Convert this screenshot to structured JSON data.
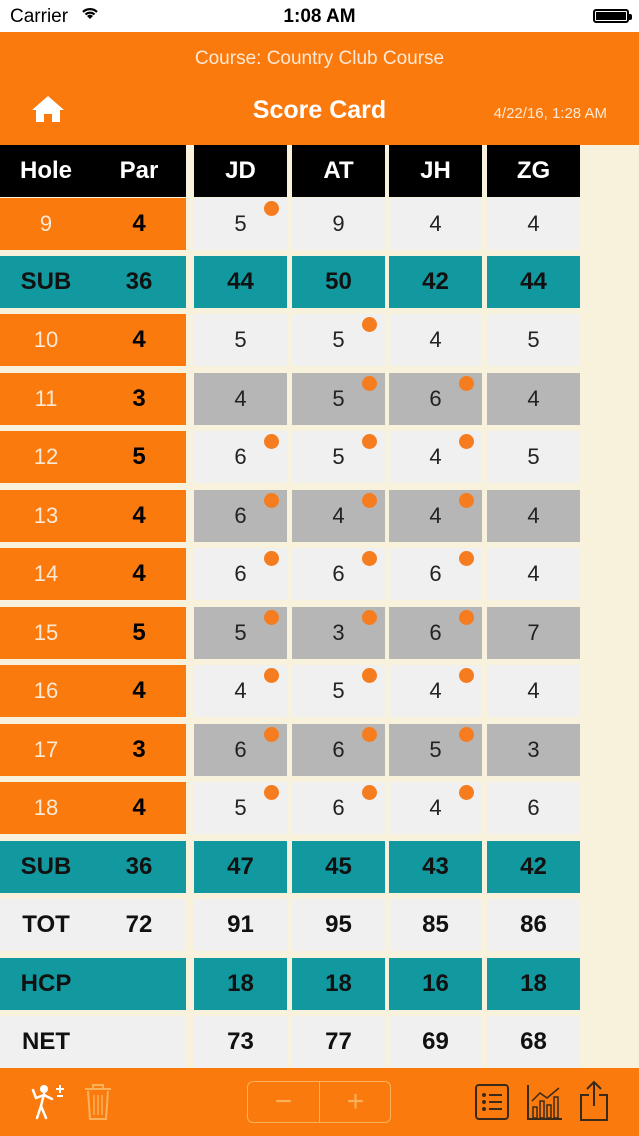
{
  "status": {
    "carrier": "Carrier",
    "time": "1:08 AM"
  },
  "nav": {
    "course": "Course: Country Club Course",
    "title": "Score Card",
    "date": "4/22/16, 1:28 AM"
  },
  "table": {
    "headers": {
      "hole": "Hole",
      "par": "Par",
      "players": [
        "JD",
        "AT",
        "JH",
        "ZG"
      ]
    },
    "rows": [
      {
        "type": "hole",
        "hole": "9",
        "par": "4",
        "shade": "white",
        "scores": [
          "5",
          "9",
          "4",
          "4"
        ],
        "dots": [
          true,
          false,
          false,
          false
        ]
      },
      {
        "type": "sub",
        "hole": "SUB",
        "par": "36",
        "scores": [
          "44",
          "50",
          "42",
          "44"
        ]
      },
      {
        "type": "hole",
        "hole": "10",
        "par": "4",
        "shade": "white",
        "scores": [
          "5",
          "5",
          "4",
          "5"
        ],
        "dots": [
          false,
          true,
          false,
          false
        ]
      },
      {
        "type": "hole",
        "hole": "11",
        "par": "3",
        "shade": "gray",
        "scores": [
          "4",
          "5",
          "6",
          "4"
        ],
        "dots": [
          false,
          true,
          true,
          false
        ]
      },
      {
        "type": "hole",
        "hole": "12",
        "par": "5",
        "shade": "white",
        "scores": [
          "6",
          "5",
          "4",
          "5"
        ],
        "dots": [
          true,
          true,
          true,
          false
        ]
      },
      {
        "type": "hole",
        "hole": "13",
        "par": "4",
        "shade": "gray",
        "scores": [
          "6",
          "4",
          "4",
          "4"
        ],
        "dots": [
          true,
          true,
          true,
          false
        ]
      },
      {
        "type": "hole",
        "hole": "14",
        "par": "4",
        "shade": "white",
        "scores": [
          "6",
          "6",
          "6",
          "4"
        ],
        "dots": [
          true,
          true,
          true,
          false
        ]
      },
      {
        "type": "hole",
        "hole": "15",
        "par": "5",
        "shade": "gray",
        "scores": [
          "5",
          "3",
          "6",
          "7"
        ],
        "dots": [
          true,
          true,
          true,
          false
        ]
      },
      {
        "type": "hole",
        "hole": "16",
        "par": "4",
        "shade": "white",
        "scores": [
          "4",
          "5",
          "4",
          "4"
        ],
        "dots": [
          true,
          true,
          true,
          false
        ]
      },
      {
        "type": "hole",
        "hole": "17",
        "par": "3",
        "shade": "gray",
        "scores": [
          "6",
          "6",
          "5",
          "3"
        ],
        "dots": [
          true,
          true,
          true,
          false
        ]
      },
      {
        "type": "hole",
        "hole": "18",
        "par": "4",
        "shade": "white",
        "scores": [
          "5",
          "6",
          "4",
          "6"
        ],
        "dots": [
          true,
          true,
          true,
          false
        ]
      },
      {
        "type": "sub",
        "hole": "SUB",
        "par": "36",
        "scores": [
          "47",
          "45",
          "43",
          "42"
        ]
      },
      {
        "type": "tot",
        "hole": "TOT",
        "par": "72",
        "scores": [
          "91",
          "95",
          "85",
          "86"
        ]
      },
      {
        "type": "hcp",
        "hole": "HCP",
        "par": "",
        "scores": [
          "18",
          "18",
          "16",
          "18"
        ]
      },
      {
        "type": "net",
        "hole": "NET",
        "par": "",
        "scores": [
          "73",
          "77",
          "69",
          "68"
        ]
      }
    ]
  },
  "toolbar": {
    "stepper": {
      "minus": "−",
      "plus": "+"
    },
    "icons": [
      "add-golfer-icon",
      "trash-icon",
      "list-icon",
      "chart-icon",
      "share-icon"
    ]
  },
  "colors": {
    "orange": "#fb7a0d",
    "teal": "#12999f",
    "dot": "#f57d1f",
    "gray_row": "#b6b6b6",
    "white_row": "#f0f0f0",
    "background": "#f8f2dc"
  }
}
